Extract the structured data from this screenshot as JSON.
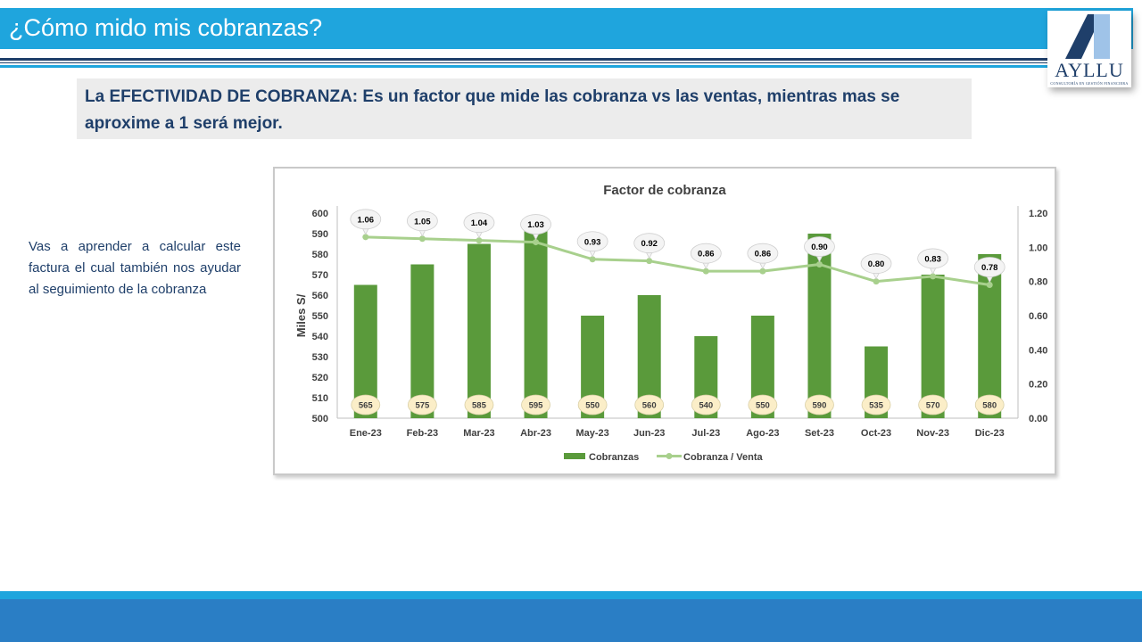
{
  "slide": {
    "title": "¿Cómo mido mis cobranzas?",
    "definition": "La EFECTIVIDAD DE COBRANZA: Es un factor que mide las cobranza  vs las ventas, mientras  mas se aproxime a 1 será mejor.",
    "side_text": "Vas a aprender a calcular este factura el cual también nos ayudar al seguimiento  de la cobranza"
  },
  "logo": {
    "name": "AYLLU",
    "tagline": "CONSULTORÍA EN GESTIÓN FINANCIERA"
  },
  "colors": {
    "title_bar": "#1fa5dd",
    "navy": "#1f3f6a",
    "bar": "#5a9a3b",
    "line": "#a8d08d",
    "bubble_fill": "#fbeec8",
    "line_label_fill": "#f4f4f4"
  },
  "chart_data": {
    "type": "bar+line",
    "title": "Factor de cobranza",
    "categories": [
      "Ene-23",
      "Feb-23",
      "Mar-23",
      "Abr-23",
      "May-23",
      "Jun-23",
      "Jul-23",
      "Ago-23",
      "Set-23",
      "Oct-23",
      "Nov-23",
      "Dic-23"
    ],
    "series": [
      {
        "name": "Cobranzas",
        "type": "bar",
        "axis": "left",
        "values": [
          565,
          575,
          585,
          595,
          550,
          560,
          540,
          550,
          590,
          535,
          570,
          580
        ],
        "labels": [
          "565",
          "575",
          "585",
          "595",
          "550",
          "560",
          "540",
          "550",
          "590",
          "535",
          "570",
          "580"
        ]
      },
      {
        "name": "Cobranza / Venta",
        "type": "line",
        "axis": "right",
        "values": [
          1.06,
          1.05,
          1.04,
          1.03,
          0.93,
          0.92,
          0.86,
          0.86,
          0.9,
          0.8,
          0.83,
          0.78
        ],
        "labels": [
          "1.06",
          "1.05",
          "1.04",
          "1.03",
          "0.93",
          "0.92",
          "0.86",
          "0.86",
          "0.90",
          "0.80",
          "0.83",
          "0.78"
        ]
      }
    ],
    "ylabel": "Miles S/",
    "ylim": [
      500,
      600
    ],
    "y_ticks": [
      600,
      590,
      580,
      570,
      560,
      550,
      540,
      530,
      520,
      510,
      500
    ],
    "y2lim": [
      0,
      1.2
    ],
    "y2_ticks": [
      "1.20",
      "1.00",
      "0.80",
      "0.60",
      "0.40",
      "0.20",
      "0.00"
    ],
    "legend_position": "bottom"
  }
}
